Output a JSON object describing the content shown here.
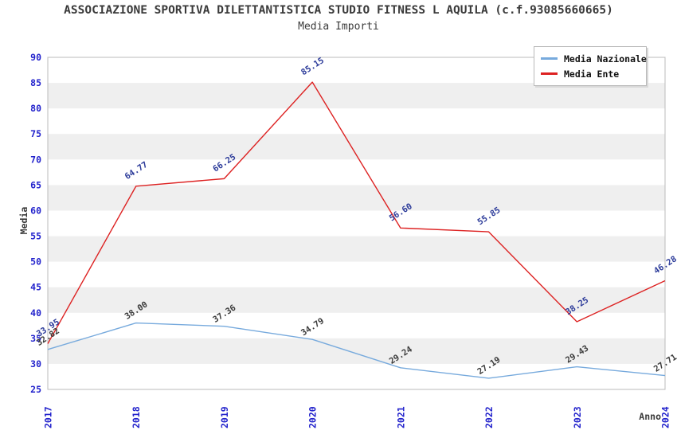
{
  "page": {
    "title": "ASSOCIAZIONE SPORTIVA DILETTANTISTICA STUDIO FITNESS L AQUILA (c.f.93085660665)",
    "subtitle": "Media Importi"
  },
  "chart_data": {
    "type": "line",
    "title": "ASSOCIAZIONE SPORTIVA DILETTANTISTICA STUDIO FITNESS L AQUILA (c.f.93085660665)",
    "subtitle": "Media Importi",
    "xlabel": "Anno",
    "ylabel": "Media",
    "x": [
      "2017",
      "2018",
      "2019",
      "2020",
      "2021",
      "2022",
      "2023",
      "2024"
    ],
    "ylim": [
      25,
      90
    ],
    "ytick_step": 5,
    "grid": "alternating-horizontal-bands",
    "legend_position": "top-right",
    "series": [
      {
        "name": "Media Nazionale",
        "color": "#77aadd",
        "label_color": "#3a3a3a",
        "values": [
          32.82,
          38.0,
          37.36,
          34.79,
          29.24,
          27.19,
          29.43,
          27.71
        ]
      },
      {
        "name": "Media Ente",
        "color": "#dd2222",
        "label_color": "#2b3a99",
        "values": [
          33.95,
          64.77,
          66.25,
          85.15,
          56.6,
          55.85,
          38.25,
          46.28
        ]
      }
    ],
    "colors": {
      "tick_label": "#2323cc",
      "band": "#efefef",
      "plot_border": "#bbbbbb",
      "text": "#3a3a3a"
    }
  }
}
